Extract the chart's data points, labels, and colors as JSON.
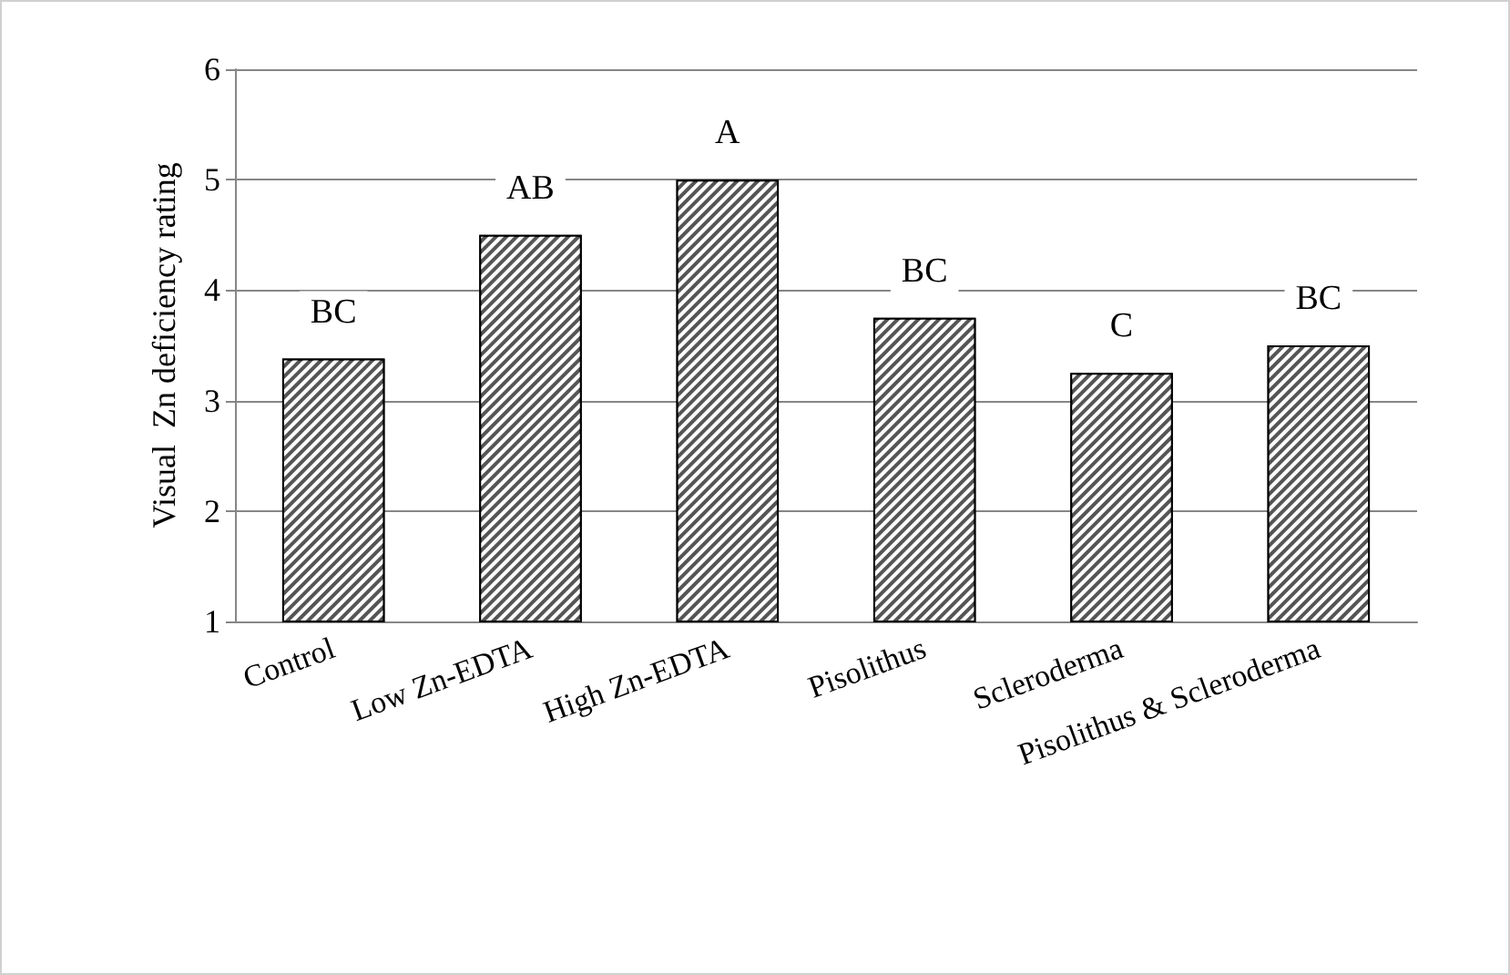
{
  "chart_data": {
    "type": "bar",
    "ylabel": "Visual  Zn deficiency rating",
    "categories": [
      "Control",
      "Low Zn-EDTA",
      "High Zn-EDTA",
      "Pisolithus",
      "Scleroderma",
      "Pisolithus & Scleroderma"
    ],
    "values": [
      3.38,
      4.5,
      5.0,
      3.75,
      3.25,
      3.5
    ],
    "color": "#555555",
    "ylim": [
      1,
      6
    ],
    "yticks": [
      1,
      2,
      3,
      4,
      5,
      6
    ],
    "grid": "y",
    "annotations": [
      {
        "text": "BC",
        "x": "Control",
        "y": 3.38
      },
      {
        "text": "AB",
        "x": "Low Zn-EDTA",
        "y": 4.5
      },
      {
        "text": "A",
        "x": "High Zn-EDTA",
        "y": 5.0
      },
      {
        "text": "BC",
        "x": "Pisolithus",
        "y": 3.75
      },
      {
        "text": "C",
        "x": "Scleroderma",
        "y": 3.25
      },
      {
        "text": "BC",
        "x": "Pisolithus & Scleroderma",
        "y": 3.5
      }
    ]
  }
}
